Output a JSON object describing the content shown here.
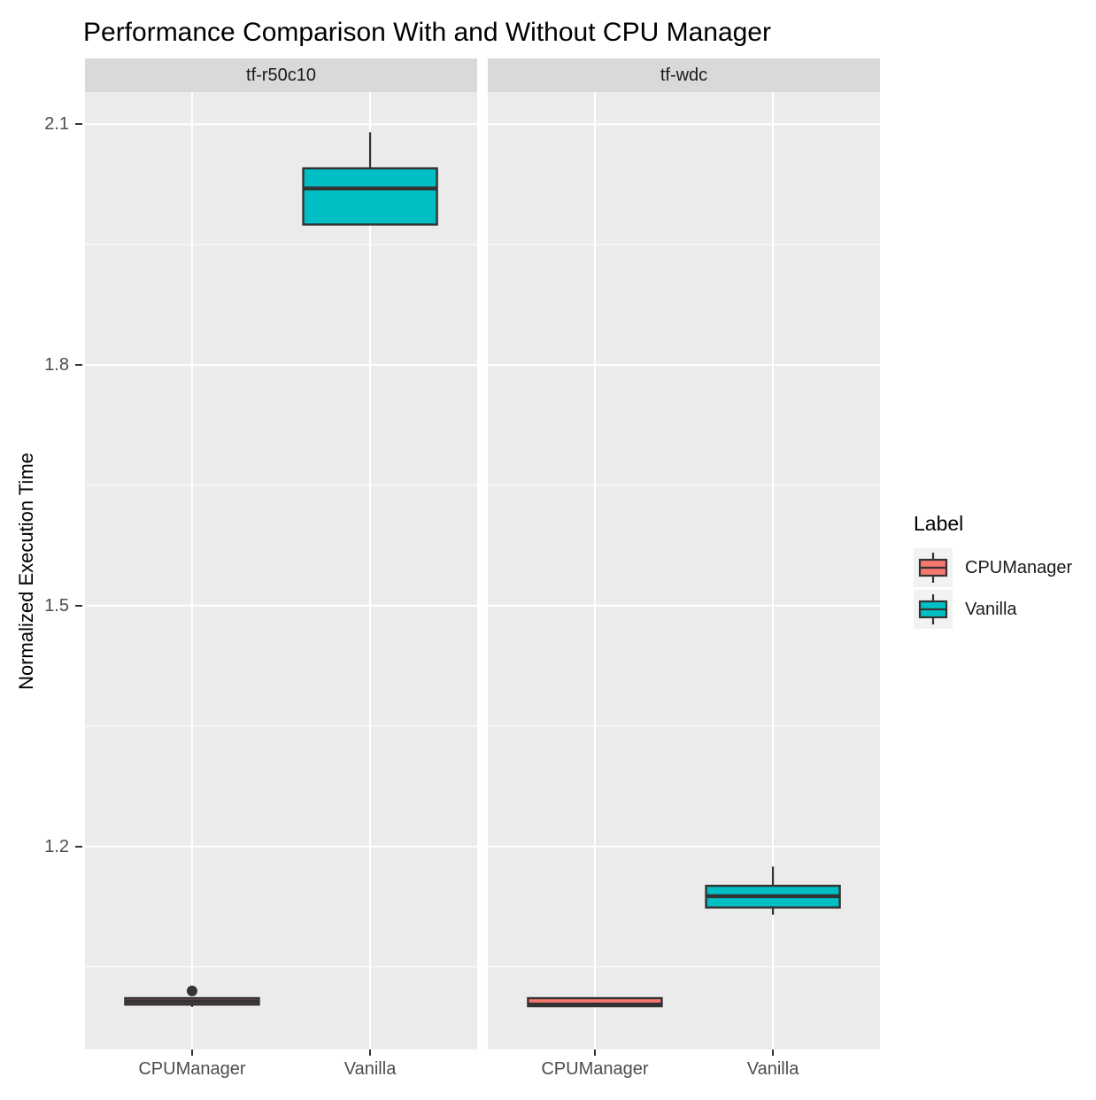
{
  "title": "Performance Comparison With and Without CPU Manager",
  "y_axis": {
    "title": "Normalized Execution Time",
    "ticks": [
      2.1,
      1.8,
      1.5,
      1.2
    ],
    "minor_ticks": [
      1.95,
      1.65,
      1.35,
      1.05
    ]
  },
  "x_axis": {
    "categories": [
      "CPUManager",
      "Vanilla"
    ]
  },
  "facets": [
    {
      "label": "tf-r50c10"
    },
    {
      "label": "tf-wdc"
    }
  ],
  "legend": {
    "title": "Label",
    "entries": [
      {
        "label": "CPUManager",
        "color": "#F8766D"
      },
      {
        "label": "Vanilla",
        "color": "#00BFC4"
      }
    ]
  },
  "colors": {
    "panel_background": "#EBEBEB",
    "strip_background": "#D9D9D9",
    "gridline": "#FFFFFF",
    "box_outline": "#333333",
    "axis_text": "#4D4D4D",
    "cpumanager_fill": "#F8766D",
    "vanilla_fill": "#00BFC4"
  },
  "chart_data": {
    "type": "boxplot",
    "title": "Performance Comparison With and Without CPU Manager",
    "ylabel": "Normalized Execution Time",
    "xlabel": "",
    "ylim": [
      0.947,
      2.14
    ],
    "y_major_ticks": [
      2.1,
      1.8,
      1.5,
      1.2
    ],
    "y_minor_gridlines": [
      1.95,
      1.65,
      1.35,
      1.05
    ],
    "grid": "on",
    "legend_position": "right",
    "categories": [
      "CPUManager",
      "Vanilla"
    ],
    "facets": [
      {
        "name": "tf-r50c10",
        "boxes": [
          {
            "category": "CPUManager",
            "color": "#F8766D",
            "whisker_low": 1.0,
            "q1": 1.003,
            "median": 1.007,
            "q3": 1.011,
            "whisker_high": 1.011,
            "outliers": [
              1.02
            ]
          },
          {
            "category": "Vanilla",
            "color": "#00BFC4",
            "whisker_low": 1.975,
            "q1": 1.975,
            "median": 2.02,
            "q3": 2.045,
            "whisker_high": 2.09,
            "outliers": []
          }
        ]
      },
      {
        "name": "tf-wdc",
        "boxes": [
          {
            "category": "CPUManager",
            "color": "#F8766D",
            "whisker_low": 1.0,
            "q1": 1.001,
            "median": 1.003,
            "q3": 1.011,
            "whisker_high": 1.012,
            "outliers": []
          },
          {
            "category": "Vanilla",
            "color": "#00BFC4",
            "whisker_low": 1.115,
            "q1": 1.124,
            "median": 1.138,
            "q3": 1.151,
            "whisker_high": 1.175,
            "outliers": []
          }
        ]
      }
    ]
  }
}
